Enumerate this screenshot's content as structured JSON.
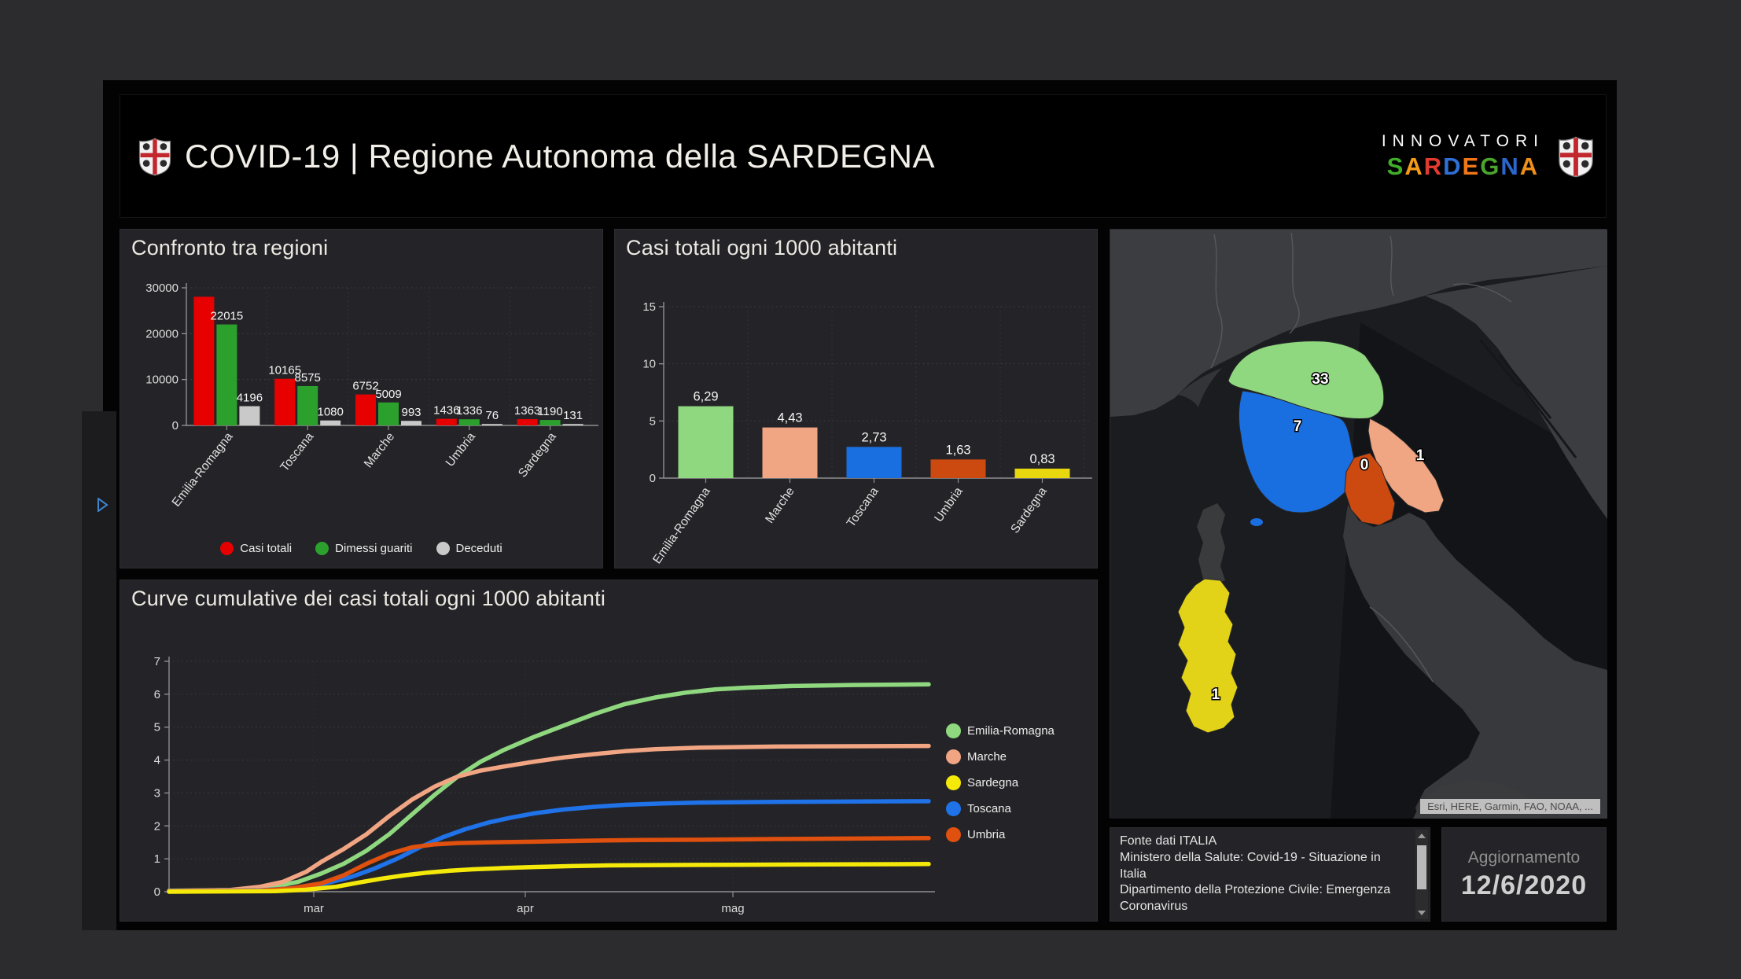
{
  "header": {
    "title": "COVID-19 | Regione Autonoma della SARDEGNA",
    "logo": {
      "line1": "INNOVATORI",
      "letters": [
        {
          "ch": "S",
          "color": "#3fae2a"
        },
        {
          "ch": "A",
          "color": "#f59b18"
        },
        {
          "ch": "R",
          "color": "#e23a2e"
        },
        {
          "ch": "D",
          "color": "#2f6fd6"
        },
        {
          "ch": "E",
          "color": "#f07818"
        },
        {
          "ch": "G",
          "color": "#49a52c"
        },
        {
          "ch": "N",
          "color": "#2b66cc"
        },
        {
          "ch": "A",
          "color": "#ef8f1a"
        }
      ]
    }
  },
  "chart_data": [
    {
      "type": "bar",
      "title": "Confronto tra regioni",
      "categories": [
        "Emilia-Romagna",
        "Toscana",
        "Marche",
        "Umbria",
        "Sardegna"
      ],
      "series": [
        {
          "name": "Casi totali",
          "color": "#e60000",
          "values": [
            28050,
            10165,
            6752,
            1436,
            1363
          ],
          "labels": [
            "",
            "10165",
            "6752",
            "1436",
            "1363"
          ]
        },
        {
          "name": "Dimessi guariti",
          "color": "#2ca02c",
          "values": [
            22015,
            8575,
            5009,
            1336,
            1190
          ],
          "labels": [
            "22015",
            "8575",
            "5009",
            "1336",
            "1190"
          ]
        },
        {
          "name": "Deceduti",
          "color": "#c9c9c9",
          "values": [
            4196,
            1080,
            993,
            76,
            131
          ],
          "labels": [
            "4196",
            "1080",
            "993",
            "76",
            "131"
          ]
        }
      ],
      "ylim": [
        0,
        30000
      ],
      "yticks": [
        0,
        10000,
        20000,
        30000
      ],
      "grid": true,
      "legend_position": "bottom"
    },
    {
      "type": "bar",
      "title": "Casi totali ogni 1000 abitanti",
      "categories": [
        "Emilia-Romagna",
        "Marche",
        "Toscana",
        "Umbria",
        "Sardegna"
      ],
      "values": [
        6.29,
        4.43,
        2.73,
        1.63,
        0.83
      ],
      "labels": [
        "6,29",
        "4,43",
        "2,73",
        "1,63",
        "0,83"
      ],
      "colors": [
        "#8fd87f",
        "#f0a583",
        "#1a6fe0",
        "#cc4a10",
        "#e8d70f"
      ],
      "ylim": [
        0,
        15
      ],
      "yticks": [
        0,
        5,
        10,
        15
      ],
      "grid": true
    },
    {
      "type": "line",
      "title": "Curve cumulative dei casi totali ogni 1000 abitanti",
      "xlabel": "",
      "ylabel": "",
      "ylim": [
        0,
        7
      ],
      "yticks": [
        0,
        1,
        2,
        3,
        4,
        5,
        6,
        7
      ],
      "xticks": [
        "mar",
        "apr",
        "mag"
      ],
      "grid": true,
      "legend_position": "right",
      "legend": [
        "Emilia-Romagna",
        "Marche",
        "Sardegna",
        "Toscana",
        "Umbria"
      ],
      "series": [
        {
          "name": "Emilia-Romagna",
          "color": "#8fd87f",
          "points": [
            [
              0,
              0.03
            ],
            [
              8,
              0.05
            ],
            [
              13,
              0.12
            ],
            [
              17,
              0.3
            ],
            [
              20,
              0.55
            ],
            [
              23,
              0.85
            ],
            [
              26,
              1.25
            ],
            [
              29,
              1.75
            ],
            [
              32,
              2.35
            ],
            [
              35,
              2.95
            ],
            [
              38,
              3.5
            ],
            [
              41,
              3.95
            ],
            [
              44,
              4.3
            ],
            [
              48,
              4.7
            ],
            [
              52,
              5.05
            ],
            [
              56,
              5.4
            ],
            [
              60,
              5.7
            ],
            [
              64,
              5.9
            ],
            [
              68,
              6.05
            ],
            [
              72,
              6.15
            ],
            [
              76,
              6.2
            ],
            [
              82,
              6.25
            ],
            [
              90,
              6.28
            ],
            [
              100,
              6.3
            ]
          ]
        },
        {
          "name": "Marche",
          "color": "#f2a583",
          "points": [
            [
              0,
              0.02
            ],
            [
              8,
              0.05
            ],
            [
              12,
              0.15
            ],
            [
              15,
              0.3
            ],
            [
              18,
              0.6
            ],
            [
              20,
              0.9
            ],
            [
              23,
              1.3
            ],
            [
              26,
              1.75
            ],
            [
              29,
              2.3
            ],
            [
              32,
              2.8
            ],
            [
              35,
              3.2
            ],
            [
              38,
              3.5
            ],
            [
              41,
              3.68
            ],
            [
              44,
              3.8
            ],
            [
              48,
              3.95
            ],
            [
              52,
              4.08
            ],
            [
              56,
              4.18
            ],
            [
              60,
              4.27
            ],
            [
              64,
              4.33
            ],
            [
              70,
              4.38
            ],
            [
              80,
              4.41
            ],
            [
              100,
              4.43
            ]
          ]
        },
        {
          "name": "Toscana",
          "color": "#1f72e8",
          "points": [
            [
              0,
              0.01
            ],
            [
              12,
              0.04
            ],
            [
              16,
              0.1
            ],
            [
              20,
              0.22
            ],
            [
              24,
              0.45
            ],
            [
              27,
              0.7
            ],
            [
              30,
              1.0
            ],
            [
              33,
              1.35
            ],
            [
              36,
              1.65
            ],
            [
              39,
              1.9
            ],
            [
              42,
              2.1
            ],
            [
              45,
              2.25
            ],
            [
              48,
              2.38
            ],
            [
              52,
              2.5
            ],
            [
              56,
              2.58
            ],
            [
              60,
              2.64
            ],
            [
              65,
              2.68
            ],
            [
              70,
              2.71
            ],
            [
              80,
              2.73
            ],
            [
              100,
              2.75
            ]
          ]
        },
        {
          "name": "Umbria",
          "color": "#e0500e",
          "points": [
            [
              0,
              0.01
            ],
            [
              12,
              0.03
            ],
            [
              16,
              0.1
            ],
            [
              20,
              0.25
            ],
            [
              23,
              0.5
            ],
            [
              26,
              0.85
            ],
            [
              29,
              1.15
            ],
            [
              32,
              1.35
            ],
            [
              35,
              1.44
            ],
            [
              38,
              1.48
            ],
            [
              42,
              1.5
            ],
            [
              48,
              1.52
            ],
            [
              55,
              1.55
            ],
            [
              62,
              1.57
            ],
            [
              70,
              1.58
            ],
            [
              80,
              1.6
            ],
            [
              100,
              1.63
            ]
          ]
        },
        {
          "name": "Sardegna",
          "color": "#f5e90a",
          "points": [
            [
              0,
              0.0
            ],
            [
              14,
              0.02
            ],
            [
              18,
              0.06
            ],
            [
              22,
              0.15
            ],
            [
              25,
              0.28
            ],
            [
              28,
              0.4
            ],
            [
              31,
              0.5
            ],
            [
              34,
              0.58
            ],
            [
              37,
              0.64
            ],
            [
              40,
              0.68
            ],
            [
              44,
              0.72
            ],
            [
              48,
              0.75
            ],
            [
              53,
              0.78
            ],
            [
              58,
              0.8
            ],
            [
              65,
              0.81
            ],
            [
              75,
              0.82
            ],
            [
              100,
              0.84
            ]
          ]
        }
      ]
    }
  ],
  "map": {
    "labels": [
      {
        "region": "Emilia-Romagna",
        "value": "33"
      },
      {
        "region": "Toscana",
        "value": "7"
      },
      {
        "region": "Marche",
        "value": "1"
      },
      {
        "region": "Umbria",
        "value": "0"
      },
      {
        "region": "Sardegna",
        "value": "1"
      }
    ],
    "attribution": "Esri, HERE, Garmin, FAO, NOAA, ..."
  },
  "source": {
    "lines": [
      "Fonte dati ITALIA",
      "Ministero della Salute: Covid-19 - Situazione in Italia",
      "Dipartimento della Protezione Civile: Emergenza Coronavirus"
    ]
  },
  "update": {
    "label": "Aggiornamento",
    "value": "12/6/2020"
  }
}
